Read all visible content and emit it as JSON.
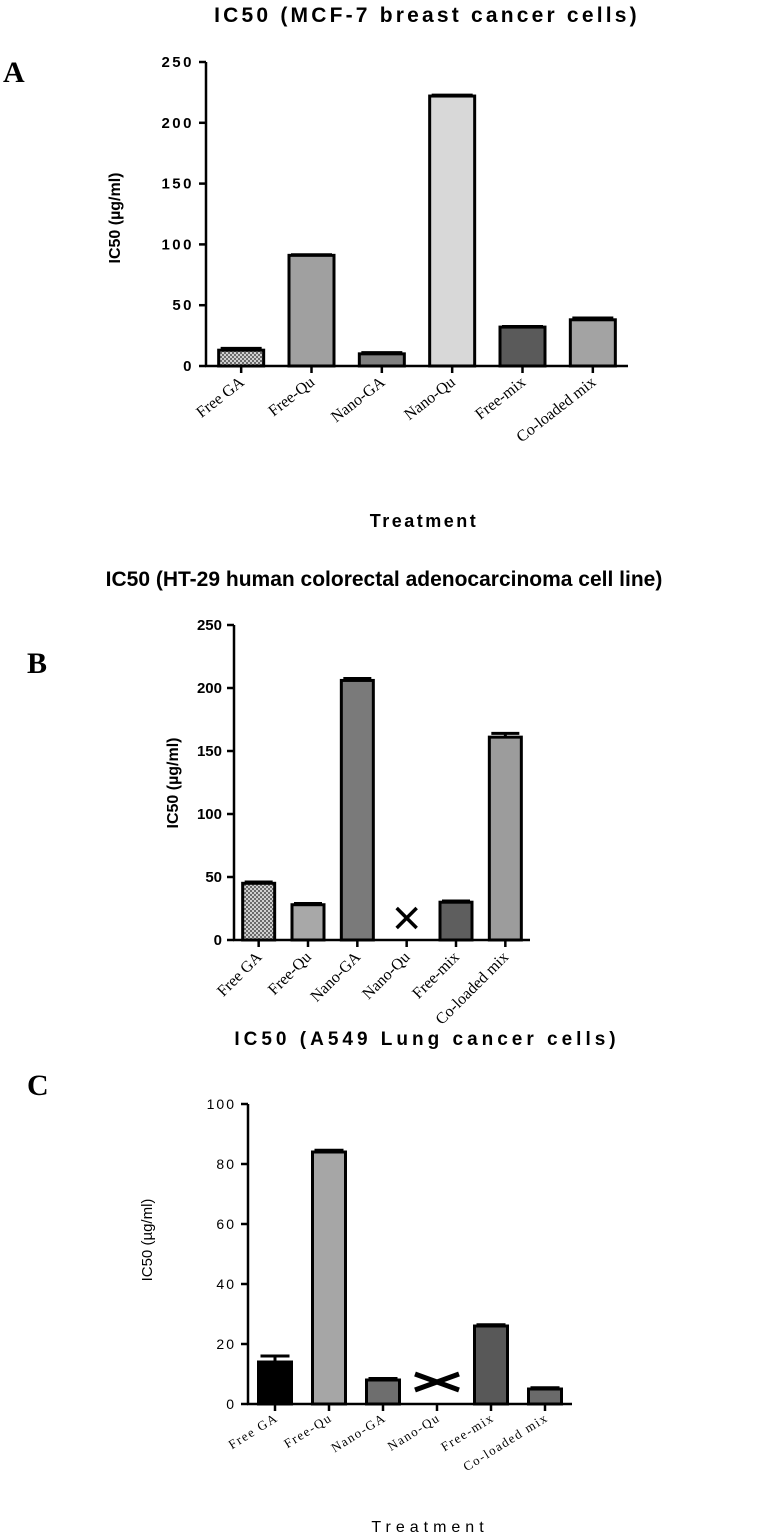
{
  "chart_data": [
    {
      "panel": "A",
      "type": "bar",
      "title": "IC50 (MCF-7 breast cancer cells)",
      "xlabel": "Treatment",
      "ylabel": "IC50 (µg/ml)",
      "ylim": [
        0,
        250
      ],
      "yticks": [
        0,
        50,
        100,
        150,
        200,
        250
      ],
      "categories": [
        "Free GA",
        "Free-Qu",
        "Nano-GA",
        "Nano-Qu",
        "Free-mix",
        "Co-loaded mix"
      ],
      "values": [
        13,
        91,
        10,
        222,
        32,
        38
      ],
      "errors": [
        1.5,
        0.5,
        1,
        0.8,
        0.5,
        1.5
      ],
      "colors": [
        "#a8a8a8",
        "#a0a0a0",
        "#808080",
        "#d8d8d8",
        "#5a5a5a",
        "#a3a3a3"
      ],
      "patterns": [
        "checker",
        null,
        null,
        null,
        null,
        null
      ],
      "grid": false
    },
    {
      "panel": "B",
      "type": "bar",
      "title": "IC50 (HT-29 human colorectal adenocarcinoma cell line)",
      "xlabel": "",
      "ylabel": "IC50 (µg/ml)",
      "ylim": [
        0,
        250
      ],
      "yticks": [
        0,
        50,
        100,
        150,
        200,
        250
      ],
      "categories": [
        "Free GA",
        "Free-Qu",
        "Nano-GA",
        "Nano-Qu",
        "Free-mix",
        "Co-loaded mix"
      ],
      "values": [
        45,
        28,
        206,
        null,
        30,
        161
      ],
      "errors": [
        1,
        1,
        1.5,
        null,
        1,
        3
      ],
      "colors": [
        "#a8a8a8",
        "#a8a8a8",
        "#7a7a7a",
        "#ffffff",
        "#5e5e5e",
        "#9c9c9c"
      ],
      "patterns": [
        "checker",
        null,
        null,
        null,
        null,
        null
      ],
      "not_available_marker": "×",
      "grid": false
    },
    {
      "panel": "C",
      "type": "bar",
      "title": "IC50 (A549 Lung cancer cells)",
      "xlabel": "Treatment",
      "ylabel": "IC50 (µg/ml)",
      "ylim": [
        0,
        100
      ],
      "yticks": [
        0,
        20,
        40,
        60,
        80,
        100
      ],
      "categories": [
        "Free GA",
        "Free-Qu",
        "Nano-GA",
        "Nano-Qu",
        "Free-mix",
        "Co-loaded mix"
      ],
      "values": [
        14,
        84,
        8,
        null,
        26,
        5
      ],
      "errors": [
        2,
        0.6,
        0.5,
        null,
        0.4,
        0.4
      ],
      "colors": [
        "#000000",
        "#a6a6a6",
        "#6e6e6e",
        "#ffffff",
        "#585858",
        "#6a6a6a"
      ],
      "patterns": [
        null,
        null,
        null,
        null,
        null,
        null
      ],
      "not_available_marker": "×",
      "grid": false
    }
  ]
}
